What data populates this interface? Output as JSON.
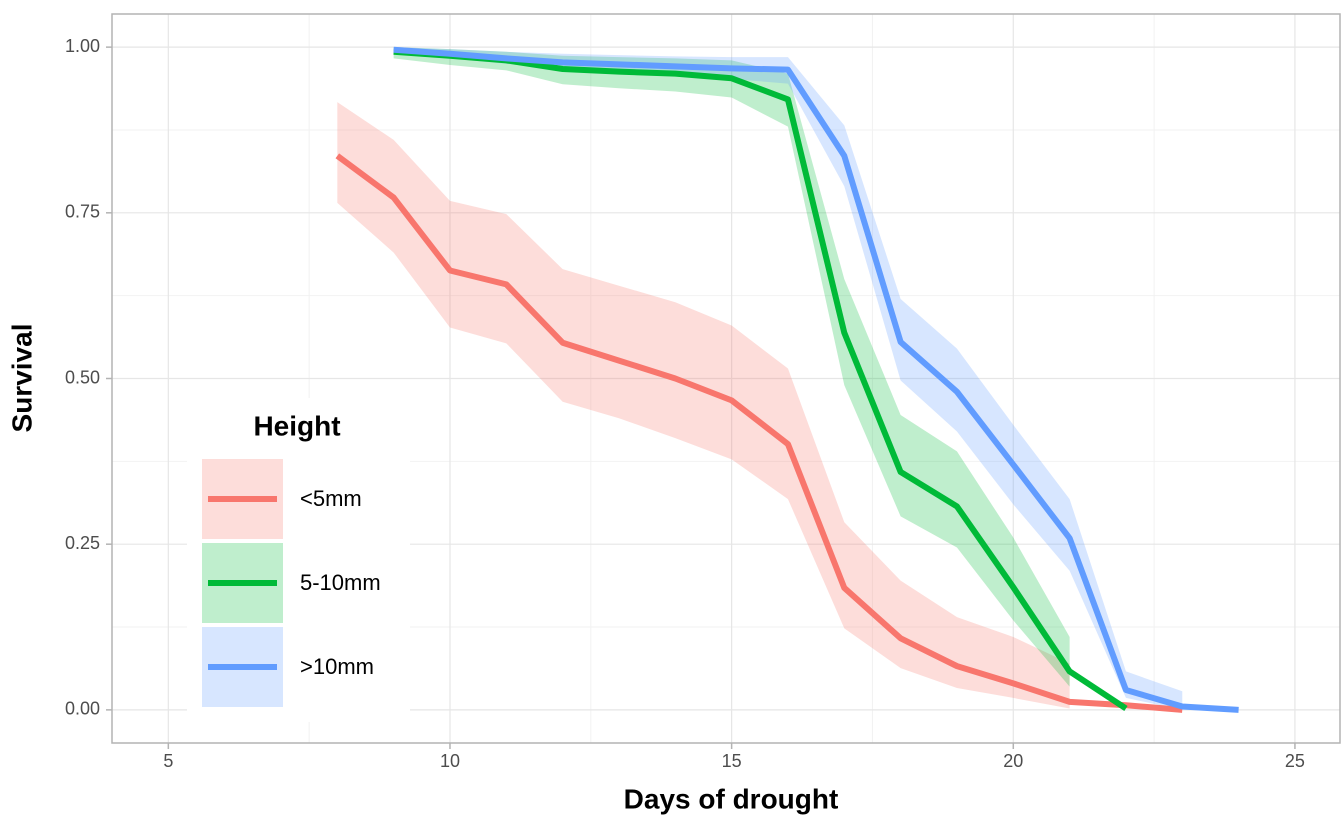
{
  "chart_data": {
    "type": "line",
    "x_label": "Days of drought",
    "y_label": "Survival",
    "legend_title": "Height",
    "legend_position": "bottom-left",
    "grid": true,
    "xlim": [
      4,
      25.8
    ],
    "ylim": [
      -0.05,
      1.05
    ],
    "xticks": [
      5,
      10,
      15,
      20,
      25
    ],
    "minor_xticks": [
      7.5,
      12.5,
      17.5,
      22.5
    ],
    "yticks": [
      {
        "value": 0,
        "label": "0.00"
      },
      {
        "value": 0.25,
        "label": "0.25"
      },
      {
        "value": 0.5,
        "label": "0.50"
      },
      {
        "value": 0.75,
        "label": "0.75"
      },
      {
        "value": 1,
        "label": "1.00"
      }
    ],
    "minor_yticks": [
      0.125,
      0.375,
      0.625,
      0.875
    ],
    "series": [
      {
        "name": "<5mm",
        "color": "#F8766D",
        "x": [
          8,
          9,
          10,
          11,
          12,
          13,
          14,
          15,
          16,
          17,
          18,
          19,
          20,
          21,
          22,
          23
        ],
        "values": [
          0.836,
          0.773,
          0.663,
          0.642,
          0.554,
          0.527,
          0.5,
          0.467,
          0.401,
          0.184,
          0.108,
          0.066,
          0.04,
          0.012,
          0.007,
          0.0
        ],
        "lower": [
          0.765,
          0.69,
          0.577,
          0.553,
          0.465,
          0.44,
          0.41,
          0.378,
          0.318,
          0.123,
          0.063,
          0.033,
          0.018,
          0.002,
          null,
          null
        ],
        "upper": [
          0.917,
          0.86,
          0.768,
          0.748,
          0.665,
          0.64,
          0.615,
          0.58,
          0.515,
          0.283,
          0.195,
          0.14,
          0.11,
          0.07,
          null,
          null
        ]
      },
      {
        "name": "5-10mm",
        "color": "#00BA38",
        "x": [
          9,
          10,
          11,
          12,
          13,
          14,
          15,
          16,
          17,
          18,
          19,
          20,
          21,
          22
        ],
        "values": [
          0.993,
          0.987,
          0.98,
          0.967,
          0.963,
          0.96,
          0.953,
          0.921,
          0.569,
          0.359,
          0.307,
          0.185,
          0.058,
          0.002
        ],
        "lower": [
          0.983,
          0.973,
          0.965,
          0.944,
          0.938,
          0.933,
          0.924,
          0.88,
          0.49,
          0.292,
          0.245,
          0.135,
          0.035,
          null
        ],
        "upper": [
          1.0,
          0.997,
          0.993,
          0.987,
          0.985,
          0.983,
          0.98,
          0.96,
          0.65,
          0.445,
          0.39,
          0.26,
          0.11,
          null
        ]
      },
      {
        "name": ">10mm",
        "color": "#619CFF",
        "x": [
          9,
          10,
          11,
          12,
          13,
          14,
          15,
          16,
          17,
          18,
          19,
          20,
          21,
          22,
          23,
          24
        ],
        "values": [
          0.996,
          0.99,
          0.983,
          0.977,
          0.974,
          0.971,
          0.968,
          0.966,
          0.836,
          0.555,
          0.48,
          0.37,
          0.259,
          0.03,
          0.005,
          0.0
        ],
        "lower": [
          0.99,
          0.983,
          0.975,
          0.965,
          0.96,
          0.956,
          0.952,
          0.945,
          0.79,
          0.497,
          0.42,
          0.31,
          0.21,
          0.018,
          0.0,
          null
        ],
        "upper": [
          1.0,
          0.997,
          0.993,
          0.99,
          0.988,
          0.986,
          0.985,
          0.985,
          0.882,
          0.62,
          0.545,
          0.43,
          0.318,
          0.058,
          0.028,
          null
        ]
      }
    ]
  }
}
